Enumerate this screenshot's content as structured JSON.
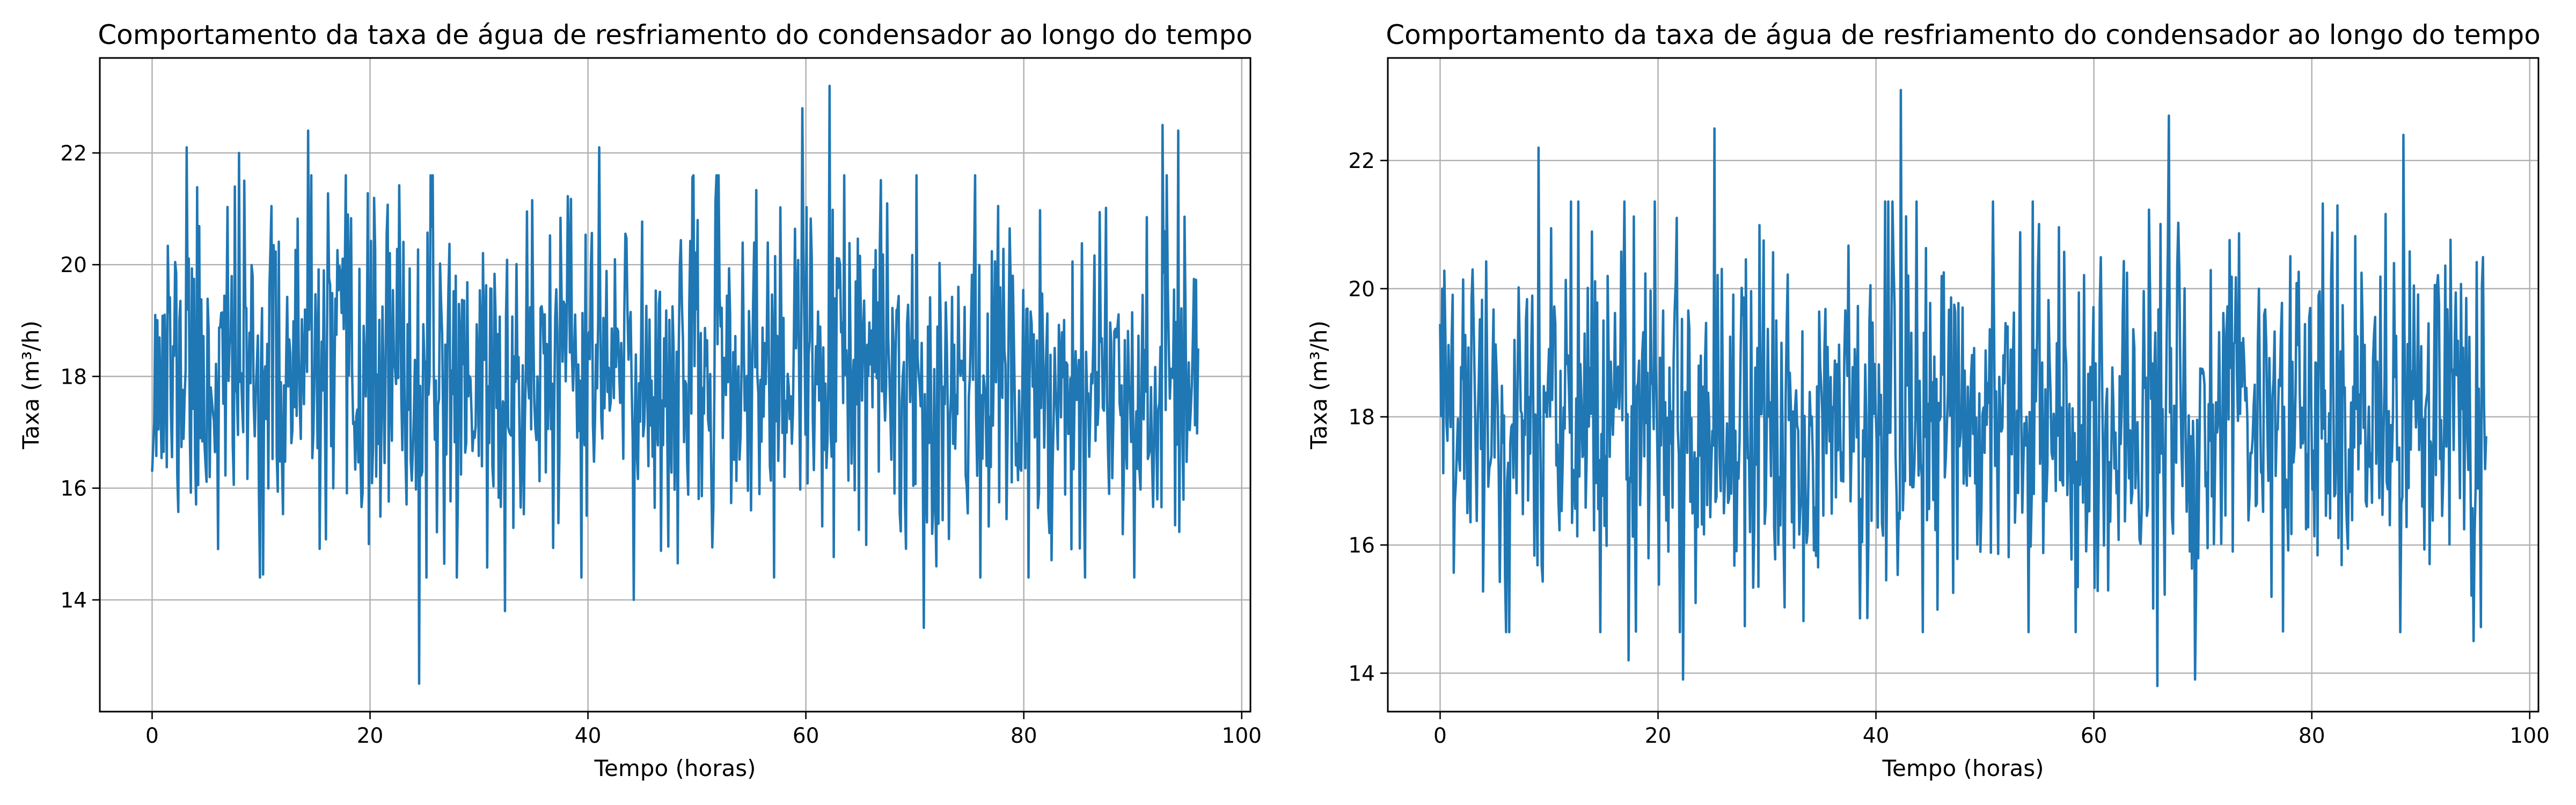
{
  "figure": {
    "background": "#ffffff",
    "line_color": "#1f77b4",
    "grid_color": "#b0b0b0"
  },
  "chart_data": [
    {
      "type": "line",
      "title": "Comportamento da taxa de água de resfriamento do condensador ao longo do tempo",
      "xlabel": "Tempo (horas)",
      "ylabel": "Taxa (m³/h)",
      "xlim": [
        -4.8,
        100.8
      ],
      "ylim": [
        12.0,
        23.7
      ],
      "xticks": [
        0,
        20,
        40,
        60,
        80,
        100
      ],
      "yticks": [
        14,
        16,
        18,
        20,
        22
      ],
      "grid": true,
      "series": [
        {
          "color": "#1f77b4",
          "x_range": [
            0,
            96
          ],
          "points": 1000,
          "mean": 18.0,
          "std": 1.5,
          "seed": 11,
          "peaks": [
            [
              0.3,
              19.1
            ],
            [
              3.2,
              22.1
            ],
            [
              8.0,
              22.0
            ],
            [
              14.3,
              22.4
            ],
            [
              24.5,
              12.5
            ],
            [
              32.4,
              13.8
            ],
            [
              41.0,
              22.1
            ],
            [
              44.2,
              14.0
            ],
            [
              59.7,
              22.8
            ],
            [
              62.2,
              23.2
            ],
            [
              70.8,
              13.5
            ],
            [
              90.1,
              14.4
            ],
            [
              92.7,
              22.5
            ],
            [
              94.2,
              22.4
            ],
            [
              96.0,
              18.5
            ]
          ]
        }
      ]
    },
    {
      "type": "line",
      "title": "Comportamento da taxa de água de resfriamento do condensador ao longo do tempo",
      "xlabel": "Tempo (horas)",
      "ylabel": "Taxa (m³/h)",
      "xlim": [
        -4.8,
        100.8
      ],
      "ylim": [
        13.4,
        23.6
      ],
      "xticks": [
        0,
        20,
        40,
        60,
        80,
        100
      ],
      "yticks": [
        14,
        16,
        18,
        20,
        22
      ],
      "grid": true,
      "series": [
        {
          "color": "#1f77b4",
          "x_range": [
            0,
            96
          ],
          "points": 1000,
          "mean": 18.0,
          "std": 1.4,
          "seed": 29,
          "peaks": [
            [
              0.2,
              20.0
            ],
            [
              9.0,
              22.2
            ],
            [
              17.3,
              14.2
            ],
            [
              22.3,
              13.9
            ],
            [
              25.2,
              22.5
            ],
            [
              42.3,
              23.1
            ],
            [
              65.8,
              13.8
            ],
            [
              66.9,
              22.7
            ],
            [
              69.3,
              13.9
            ],
            [
              88.4,
              22.4
            ],
            [
              94.8,
              14.5
            ],
            [
              96.0,
              17.7
            ]
          ]
        }
      ]
    }
  ]
}
